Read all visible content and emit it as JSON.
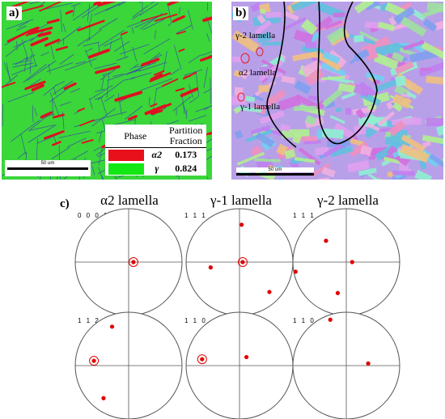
{
  "panel_a": {
    "label": "a)",
    "scalebar": "50 um",
    "legend": {
      "col_phase": "Phase",
      "col_fraction_line1": "Partition",
      "col_fraction_line2": "Fraction",
      "rows": [
        {
          "phase": "α2",
          "color": "#e8101a",
          "fraction": "0.173"
        },
        {
          "phase": "γ",
          "color": "#14e814",
          "fraction": "0.824"
        }
      ]
    },
    "colors": {
      "gamma": "#3ad63a",
      "alpha2": "#e01020",
      "boundary": "#3a5a9a"
    }
  },
  "panel_b": {
    "label": "b)",
    "scalebar": "50 um",
    "labels": [
      "γ-2 lamella",
      "α2 lamella",
      "γ-1 lamella"
    ]
  },
  "panel_c": {
    "label": "c)",
    "columns": [
      "α2 lamella",
      "γ-1 lamella",
      "γ-2 lamella"
    ],
    "rows": [
      {
        "indices": [
          "0 0 0 1",
          "1 1 1",
          "1 1 1"
        ]
      },
      {
        "indices": [
          "1 1 2 0",
          "1 1 0",
          "1 1 0"
        ]
      }
    ],
    "pole_color": "#e00000"
  }
}
